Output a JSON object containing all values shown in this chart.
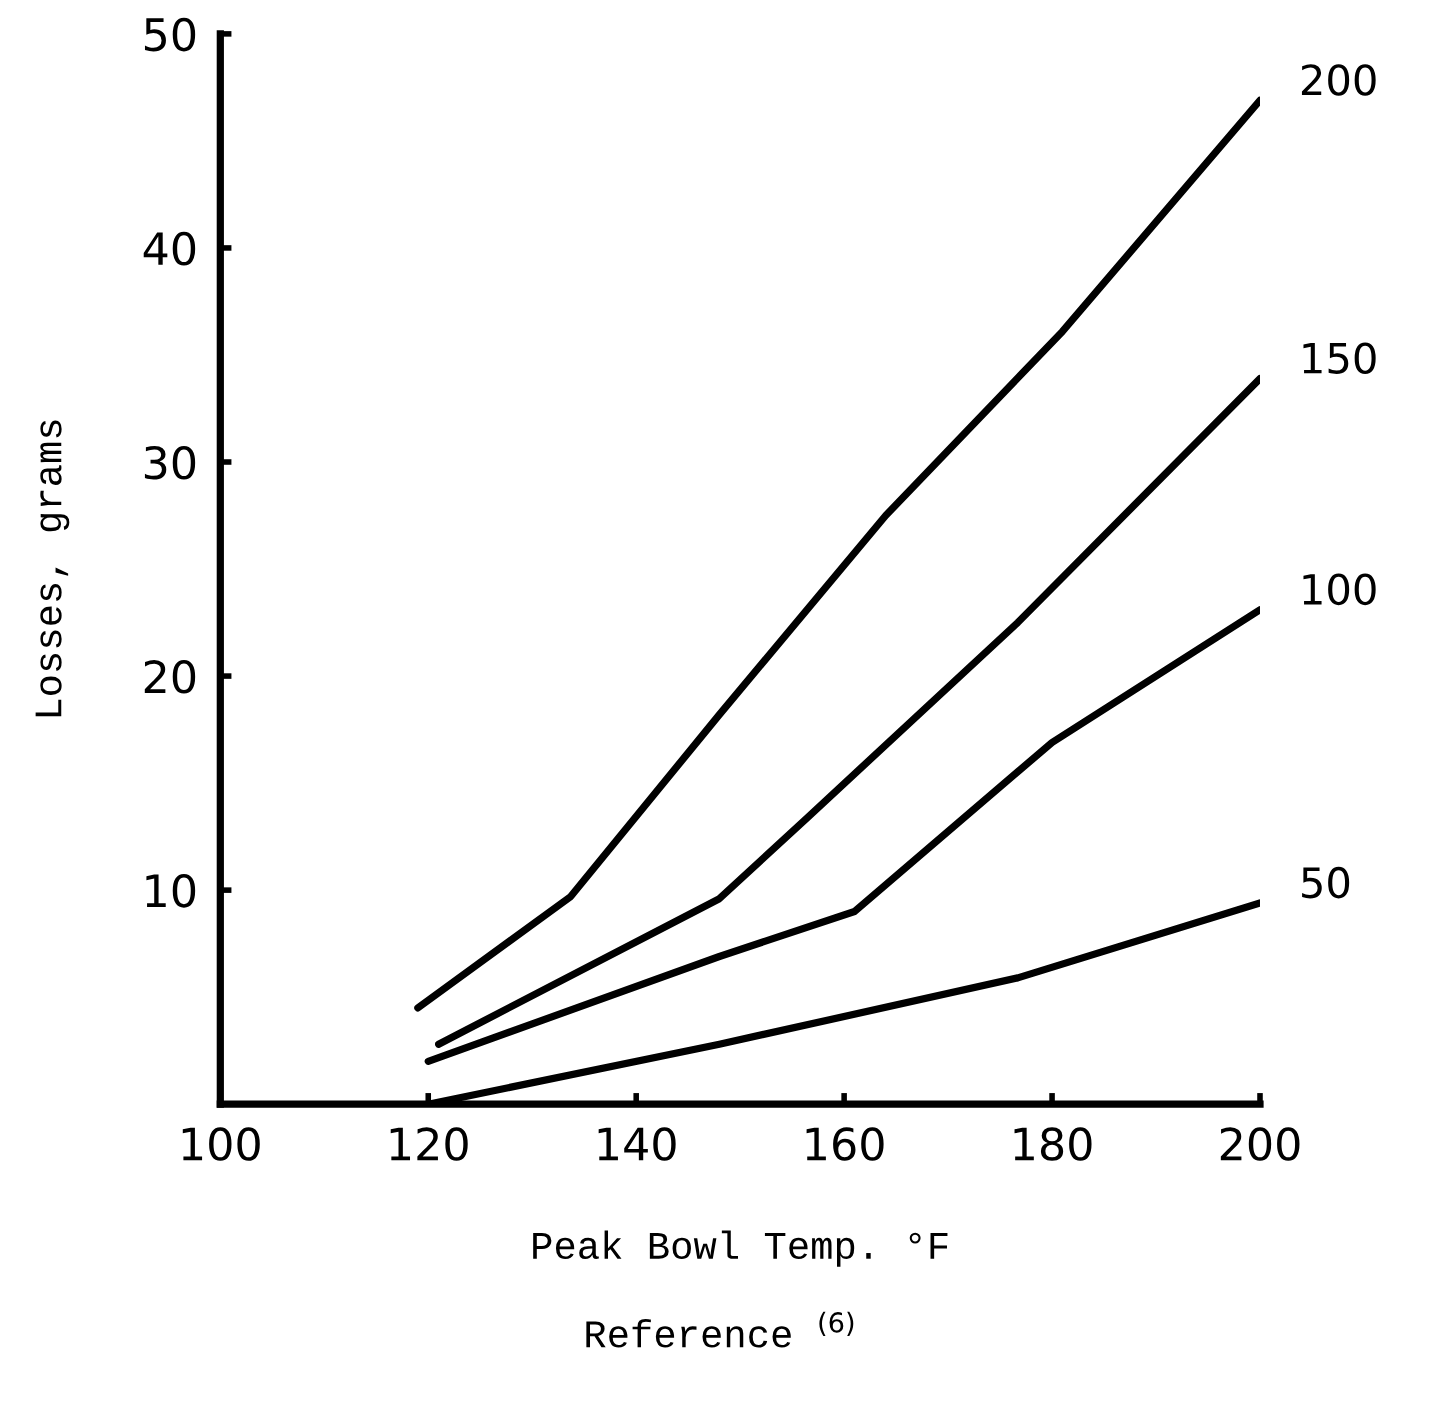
{
  "chart_data": {
    "type": "line",
    "xlabel": "Peak Bowl Temp. °F",
    "ylabel": "Losses, grams",
    "annotations": [
      "Reference $^{(6)}$"
    ],
    "xlim": [
      100,
      200
    ],
    "ylim": [
      0,
      50
    ],
    "xticks": [
      100,
      120,
      140,
      160,
      180,
      200
    ],
    "yticks": [
      10,
      20,
      30,
      40,
      50
    ],
    "grid": false,
    "legend": false,
    "marker": "none",
    "line_style": "solid",
    "series": [
      {
        "name": "200",
        "color": "#000000",
        "x": [
          119,
          133.7,
          148,
          164,
          181,
          200
        ],
        "values": [
          4.5,
          9.7,
          18.2,
          27.5,
          36.1,
          46.9
        ]
      },
      {
        "name": "150",
        "color": "#000000",
        "x": [
          121,
          148,
          156.5,
          176.7,
          200
        ],
        "values": [
          2.8,
          9.6,
          13.4,
          22.5,
          33.9
        ]
      },
      {
        "name": "100",
        "color": "#000000",
        "x": [
          120,
          148,
          161,
          180,
          200
        ],
        "values": [
          2.0,
          6.9,
          9.0,
          16.9,
          23.1
        ]
      },
      {
        "name": "50",
        "color": "#000000",
        "x": [
          120,
          148,
          176.7,
          200
        ],
        "values": [
          0,
          2.8,
          5.9,
          9.4
        ]
      }
    ]
  }
}
